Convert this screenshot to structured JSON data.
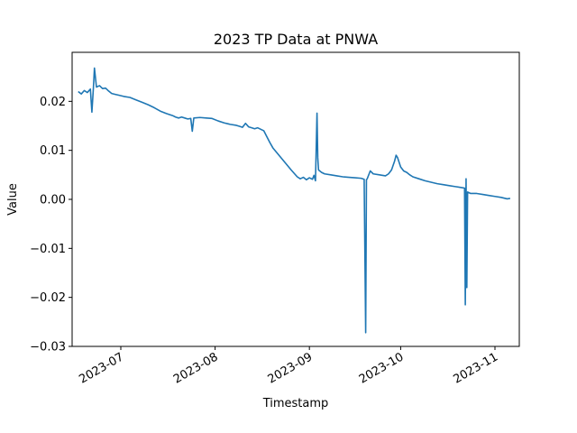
{
  "chart_data": {
    "type": "line",
    "title": "2023 TP Data at PNWA",
    "xlabel": "Timestamp",
    "ylabel": "Value",
    "xlim": [
      "2023-06-15",
      "2023-11-09"
    ],
    "ylim": [
      -0.03,
      0.03
    ],
    "x_ticks": [
      "2023-07",
      "2023-08",
      "2023-09",
      "2023-10",
      "2023-11"
    ],
    "y_ticks": [
      "−0.03",
      "−0.02",
      "−0.01",
      "0.00",
      "0.01",
      "0.02"
    ],
    "y_tick_values": [
      -0.03,
      -0.02,
      -0.01,
      0.0,
      0.01,
      0.02
    ],
    "grid": false,
    "legend": "none",
    "series": [
      {
        "color": "#1f77b4",
        "points": [
          [
            "2023-06-17",
            0.022
          ],
          [
            "2023-06-18",
            0.0215
          ],
          [
            "2023-06-19",
            0.0222
          ],
          [
            "2023-06-20",
            0.0218
          ],
          [
            "2023-06-21",
            0.0225
          ],
          [
            "2023-06-21T12",
            0.0178
          ],
          [
            "2023-06-22",
            0.0228
          ],
          [
            "2023-06-22T08",
            0.0268
          ],
          [
            "2023-06-23",
            0.0229
          ],
          [
            "2023-06-24",
            0.0232
          ],
          [
            "2023-06-25",
            0.0226
          ],
          [
            "2023-06-26",
            0.0227
          ],
          [
            "2023-06-27",
            0.0221
          ],
          [
            "2023-06-28",
            0.0216
          ],
          [
            "2023-06-30",
            0.0213
          ],
          [
            "2023-07-02",
            0.021
          ],
          [
            "2023-07-04",
            0.0208
          ],
          [
            "2023-07-06",
            0.0203
          ],
          [
            "2023-07-08",
            0.0198
          ],
          [
            "2023-07-10",
            0.0193
          ],
          [
            "2023-07-12",
            0.0187
          ],
          [
            "2023-07-14",
            0.018
          ],
          [
            "2023-07-16",
            0.0175
          ],
          [
            "2023-07-18",
            0.0171
          ],
          [
            "2023-07-19",
            0.0168
          ],
          [
            "2023-07-20",
            0.0166
          ],
          [
            "2023-07-21",
            0.0168
          ],
          [
            "2023-07-22",
            0.0166
          ],
          [
            "2023-07-23",
            0.0164
          ],
          [
            "2023-07-24",
            0.0165
          ],
          [
            "2023-07-24T12",
            0.0139
          ],
          [
            "2023-07-25",
            0.0166
          ],
          [
            "2023-07-27",
            0.0167
          ],
          [
            "2023-07-29",
            0.0166
          ],
          [
            "2023-07-31",
            0.0165
          ],
          [
            "2023-08-02",
            0.016
          ],
          [
            "2023-08-04",
            0.0156
          ],
          [
            "2023-08-06",
            0.0153
          ],
          [
            "2023-08-08",
            0.0151
          ],
          [
            "2023-08-09",
            0.0149
          ],
          [
            "2023-08-10",
            0.0147
          ],
          [
            "2023-08-11",
            0.0155
          ],
          [
            "2023-08-12",
            0.0148
          ],
          [
            "2023-08-13",
            0.0146
          ],
          [
            "2023-08-14",
            0.0144
          ],
          [
            "2023-08-15",
            0.0146
          ],
          [
            "2023-08-16",
            0.0143
          ],
          [
            "2023-08-17",
            0.014
          ],
          [
            "2023-08-18",
            0.0128
          ],
          [
            "2023-08-19",
            0.0116
          ],
          [
            "2023-08-20",
            0.0105
          ],
          [
            "2023-08-22",
            0.009
          ],
          [
            "2023-08-24",
            0.0075
          ],
          [
            "2023-08-26",
            0.006
          ],
          [
            "2023-08-28",
            0.0046
          ],
          [
            "2023-08-29",
            0.0042
          ],
          [
            "2023-08-30",
            0.0045
          ],
          [
            "2023-08-31",
            0.004
          ],
          [
            "2023-09-01",
            0.0044
          ],
          [
            "2023-09-02",
            0.0041
          ],
          [
            "2023-09-02T12",
            0.0049
          ],
          [
            "2023-09-03",
            0.0038
          ],
          [
            "2023-09-03T12",
            0.0176
          ],
          [
            "2023-09-03T18",
            0.0085
          ],
          [
            "2023-09-04",
            0.006
          ],
          [
            "2023-09-05",
            0.0055
          ],
          [
            "2023-09-06",
            0.0052
          ],
          [
            "2023-09-08",
            0.005
          ],
          [
            "2023-09-10",
            0.0048
          ],
          [
            "2023-09-12",
            0.0046
          ],
          [
            "2023-09-14",
            0.0045
          ],
          [
            "2023-09-16",
            0.0044
          ],
          [
            "2023-09-18",
            0.0043
          ],
          [
            "2023-09-19",
            0.0041
          ],
          [
            "2023-09-19T12",
            -0.0272
          ],
          [
            "2023-09-19T18",
            0.004
          ],
          [
            "2023-09-20",
            0.0042
          ],
          [
            "2023-09-21",
            0.0058
          ],
          [
            "2023-09-22",
            0.0052
          ],
          [
            "2023-09-24",
            0.005
          ],
          [
            "2023-09-26",
            0.0048
          ],
          [
            "2023-09-27",
            0.0052
          ],
          [
            "2023-09-28",
            0.006
          ],
          [
            "2023-09-29",
            0.0078
          ],
          [
            "2023-09-29T12",
            0.009
          ],
          [
            "2023-09-30",
            0.0085
          ],
          [
            "2023-10-01",
            0.0066
          ],
          [
            "2023-10-02",
            0.0058
          ],
          [
            "2023-10-03",
            0.0055
          ],
          [
            "2023-10-04",
            0.005
          ],
          [
            "2023-10-05",
            0.0046
          ],
          [
            "2023-10-07",
            0.0042
          ],
          [
            "2023-10-09",
            0.0038
          ],
          [
            "2023-10-11",
            0.0035
          ],
          [
            "2023-10-13",
            0.0032
          ],
          [
            "2023-10-15",
            0.003
          ],
          [
            "2023-10-17",
            0.0028
          ],
          [
            "2023-10-19",
            0.0026
          ],
          [
            "2023-10-21",
            0.0024
          ],
          [
            "2023-10-22",
            0.0023
          ],
          [
            "2023-10-22T06",
            -0.0215
          ],
          [
            "2023-10-22T12",
            0.0042
          ],
          [
            "2023-10-22T18",
            -0.018
          ],
          [
            "2023-10-23",
            0.0015
          ],
          [
            "2023-10-24",
            0.0012
          ],
          [
            "2023-10-26",
            0.0012
          ],
          [
            "2023-10-28",
            0.001
          ],
          [
            "2023-10-30",
            0.0008
          ],
          [
            "2023-11-01",
            0.0006
          ],
          [
            "2023-11-03",
            0.0004
          ],
          [
            "2023-11-05",
            0.0001
          ],
          [
            "2023-11-06",
            0.0002
          ]
        ]
      }
    ]
  }
}
